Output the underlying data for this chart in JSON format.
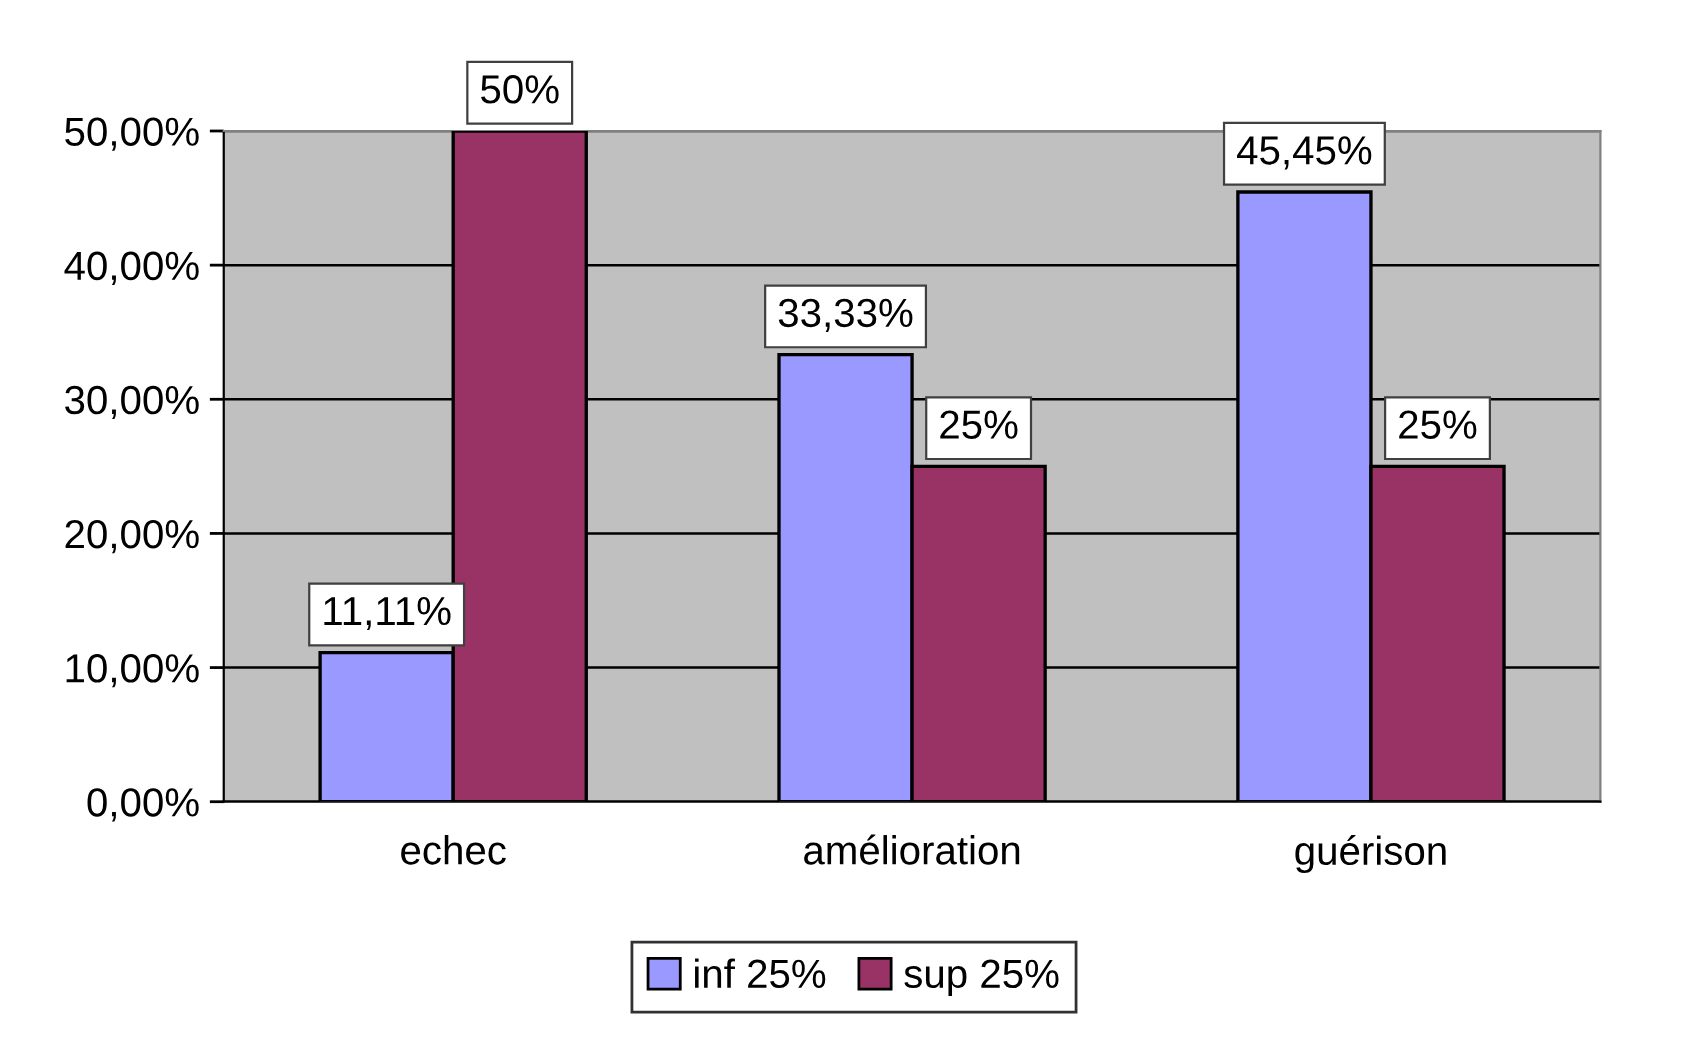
{
  "chart_data": {
    "type": "bar",
    "categories": [
      "echec",
      "amélioration",
      "guérison"
    ],
    "series": [
      {
        "name": "inf 25%",
        "color": "#9999ff",
        "values": [
          11.11,
          33.33,
          45.45
        ],
        "value_labels": [
          "11,11%",
          "33,33%",
          "45,45%"
        ]
      },
      {
        "name": "sup 25%",
        "color": "#993366",
        "values": [
          50,
          25,
          25
        ],
        "value_labels": [
          "50%",
          "25%",
          "25%"
        ]
      }
    ],
    "ylim": [
      0,
      50
    ],
    "yticks": [
      {
        "value": 0,
        "label": "0,00%"
      },
      {
        "value": 10,
        "label": "10,00%"
      },
      {
        "value": 20,
        "label": "20,00%"
      },
      {
        "value": 30,
        "label": "30,00%"
      },
      {
        "value": 40,
        "label": "40,00%"
      },
      {
        "value": 50,
        "label": "50,00%"
      }
    ],
    "grid": "y",
    "legend": "bottom"
  }
}
